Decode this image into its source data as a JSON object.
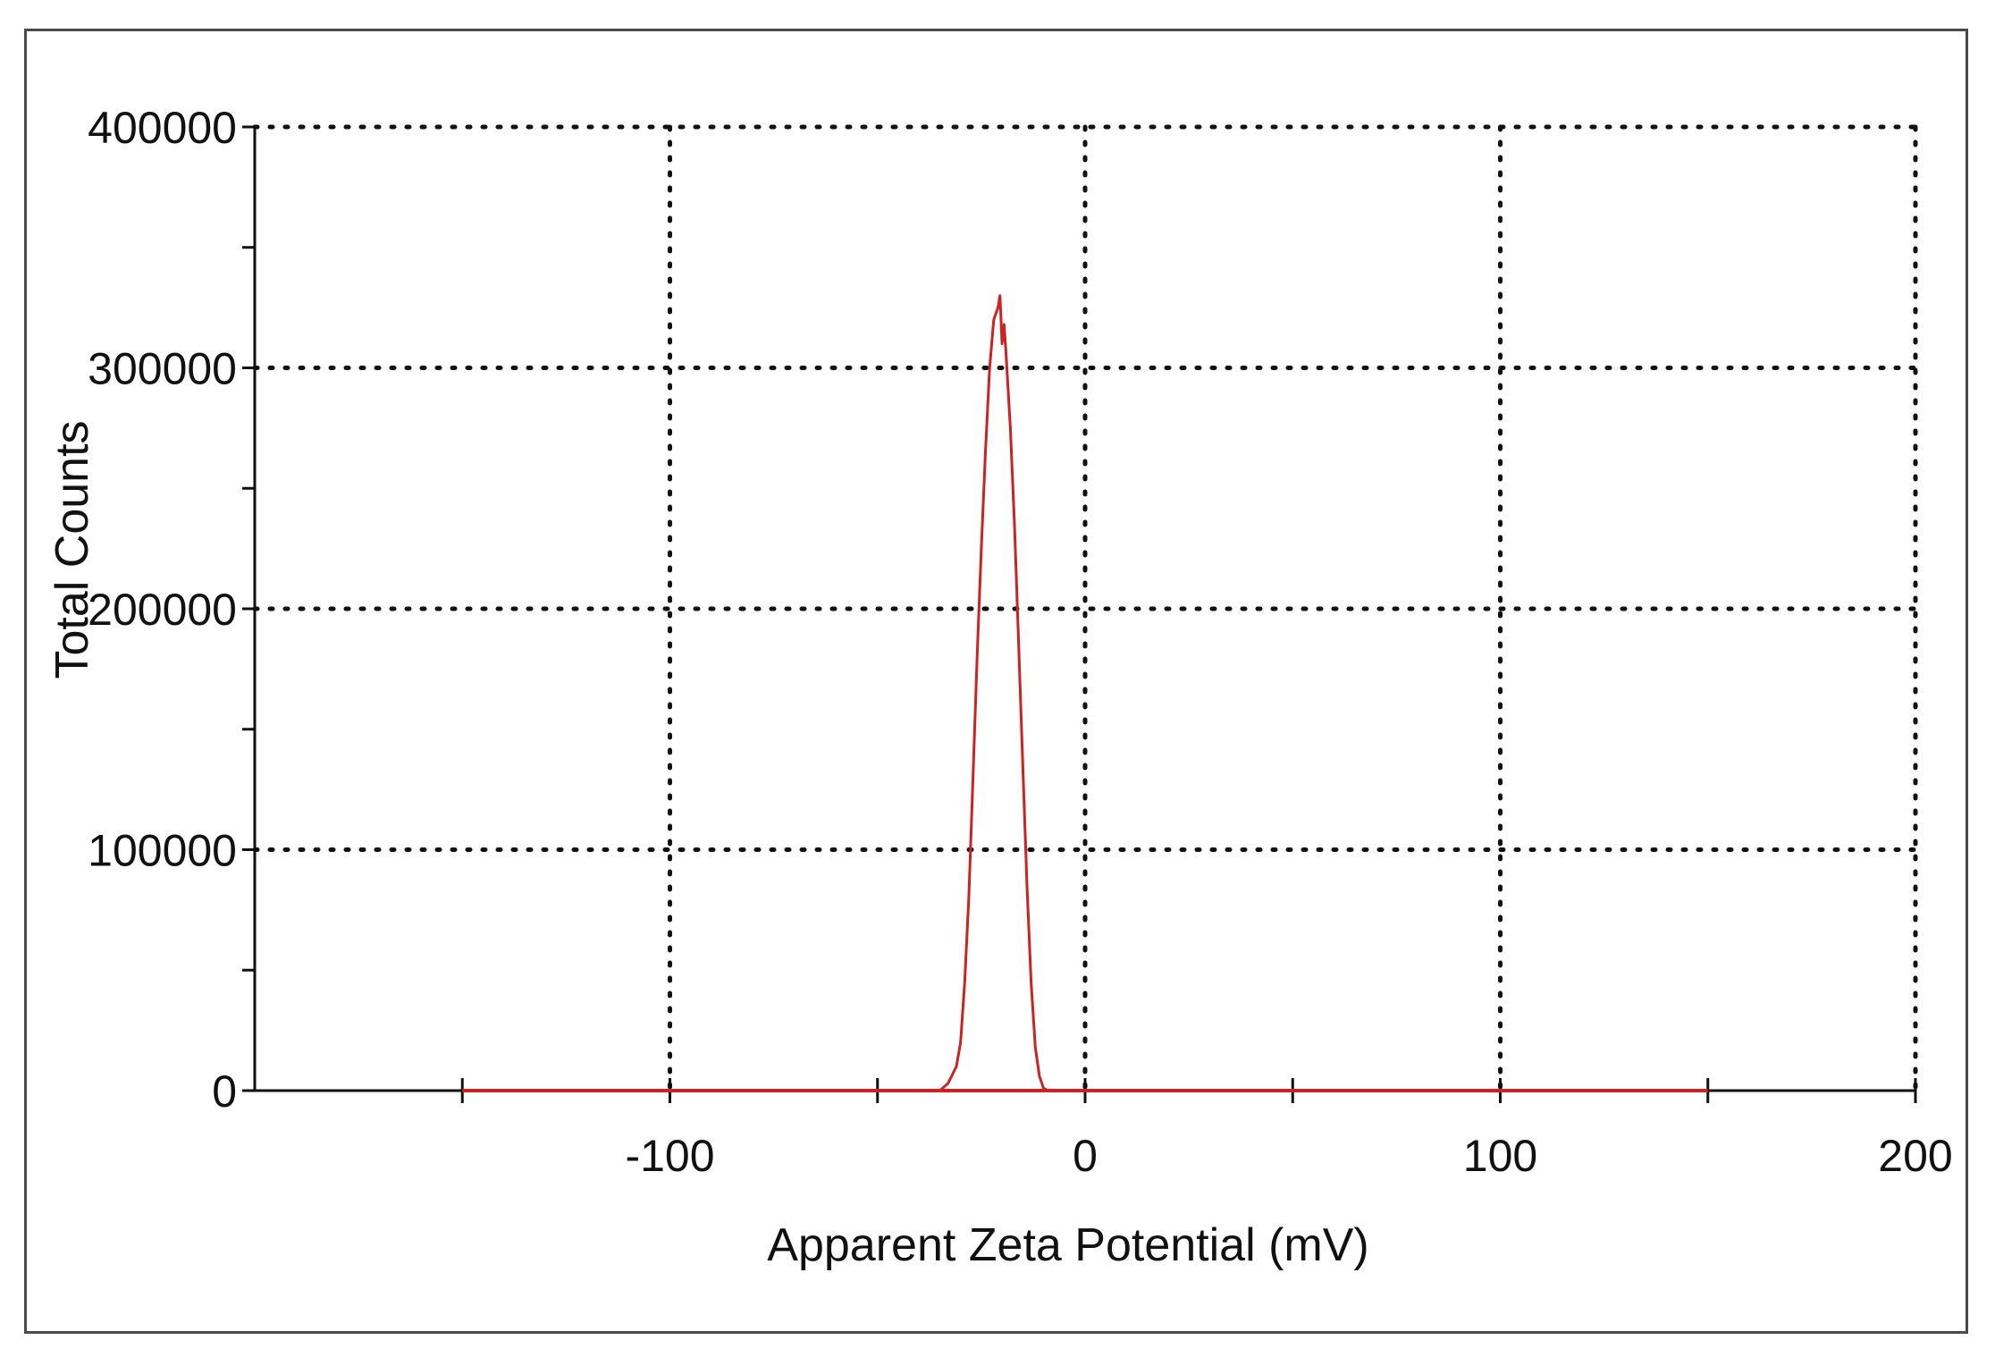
{
  "chart_data": {
    "type": "line",
    "title": "",
    "xlabel": "Apparent Zeta Potential (mV)",
    "ylabel": "Total Counts",
    "xlim": [
      -200,
      200
    ],
    "ylim": [
      0,
      400000
    ],
    "x_ticks": [
      -100,
      0,
      100,
      200
    ],
    "y_ticks": [
      0,
      100000,
      200000,
      300000,
      400000
    ],
    "x_tick_labels": [
      "-100",
      "0",
      "100",
      "200"
    ],
    "y_tick_labels": [
      "0",
      "100000",
      "200000",
      "300000",
      "400000"
    ],
    "grid": true,
    "legend": "none",
    "series": [
      {
        "color": "#cc2222",
        "x": [
          -150,
          -100,
          -50,
          -35,
          -33,
          -31,
          -30,
          -29,
          -28,
          -27,
          -26,
          -25,
          -24,
          -23,
          -22,
          -21,
          -20.5,
          -20,
          -19.5,
          -19,
          -18,
          -17,
          -16,
          -15,
          -14,
          -13,
          -12,
          -11,
          -10,
          -9,
          0,
          50,
          100,
          150
        ],
        "y": [
          0,
          0,
          0,
          0,
          3000,
          10000,
          20000,
          45000,
          80000,
          130000,
          180000,
          225000,
          265000,
          300000,
          320000,
          325000,
          330000,
          310000,
          318000,
          305000,
          275000,
          235000,
          185000,
          135000,
          85000,
          45000,
          18000,
          6000,
          1000,
          0,
          0,
          0,
          0,
          0
        ]
      }
    ]
  }
}
